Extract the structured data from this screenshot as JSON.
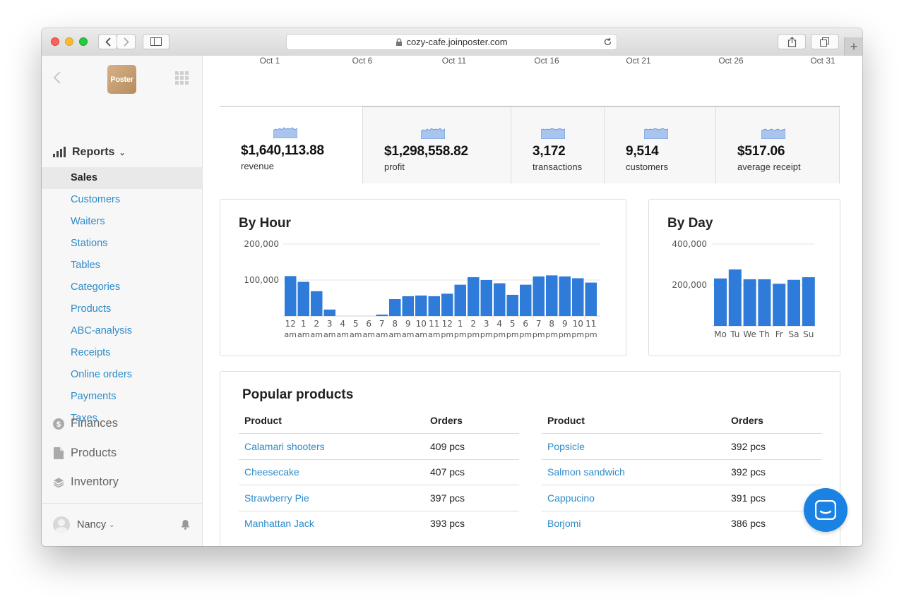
{
  "browser": {
    "url": "cozy-cafe.joinposter.com",
    "new_tab_icon": "plus-icon"
  },
  "sidebar": {
    "logo_text": "Poster",
    "reports_label": "Reports",
    "report_items": [
      {
        "label": "Sales",
        "active": true
      },
      {
        "label": "Customers"
      },
      {
        "label": "Waiters"
      },
      {
        "label": "Stations"
      },
      {
        "label": "Tables"
      },
      {
        "label": "Categories"
      },
      {
        "label": "Products"
      },
      {
        "label": "ABC-analysis"
      },
      {
        "label": "Receipts"
      },
      {
        "label": "Online orders"
      },
      {
        "label": "Payments"
      },
      {
        "label": "Taxes"
      }
    ],
    "main_items": [
      {
        "label": "Finances",
        "icon": "dollar-icon"
      },
      {
        "label": "Products",
        "icon": "document-icon"
      },
      {
        "label": "Inventory",
        "icon": "layers-icon"
      }
    ],
    "user_name": "Nancy"
  },
  "date_axis": [
    "Oct 1",
    "Oct 6",
    "Oct 11",
    "Oct 16",
    "Oct 21",
    "Oct 26",
    "Oct 31"
  ],
  "stats": [
    {
      "value": "$1,640,113.88",
      "label": "revenue"
    },
    {
      "value": "$1,298,558.82",
      "label": "profit"
    },
    {
      "value": "3,172",
      "label": "transactions"
    },
    {
      "value": "9,514",
      "label": "customers"
    },
    {
      "value": "$517.06",
      "label": "average receipt"
    }
  ],
  "colors": {
    "bar": "#2e7bd9",
    "link": "#2d8bc9",
    "accent": "#1a82e2"
  },
  "chart_data": [
    {
      "type": "bar",
      "title": "By Hour",
      "categories": [
        "12 am",
        "1 am",
        "2 am",
        "3 am",
        "4 am",
        "5 am",
        "6 am",
        "7 am",
        "8 am",
        "9 am",
        "10 am",
        "11 am",
        "12 pm",
        "1 pm",
        "2 pm",
        "3 pm",
        "4 pm",
        "5 pm",
        "6 pm",
        "7 pm",
        "8 pm",
        "9 pm",
        "10 pm",
        "11 pm"
      ],
      "tick_top": [
        "12",
        "1",
        "2",
        "3",
        "4",
        "5",
        "6",
        "7",
        "8",
        "9",
        "10",
        "11",
        "12",
        "1",
        "2",
        "3",
        "4",
        "5",
        "6",
        "7",
        "8",
        "9",
        "10",
        "11"
      ],
      "tick_bottom": [
        "am",
        "am",
        "am",
        "am",
        "am",
        "am",
        "am",
        "am",
        "am",
        "am",
        "am",
        "am",
        "pm",
        "pm",
        "pm",
        "pm",
        "pm",
        "pm",
        "pm",
        "pm",
        "pm",
        "pm",
        "pm",
        "pm"
      ],
      "values": [
        111000,
        95000,
        69000,
        18000,
        0,
        0,
        0,
        4000,
        47000,
        55000,
        57000,
        55000,
        62000,
        87000,
        108000,
        100000,
        91000,
        59000,
        87000,
        110000,
        113000,
        110000,
        105000,
        93000
      ],
      "ylim": [
        0,
        200000
      ],
      "yticks": [
        "200,000",
        "100,000"
      ],
      "grid": true
    },
    {
      "type": "bar",
      "title": "By Day",
      "categories": [
        "Mo",
        "Tu",
        "We",
        "Th",
        "Fr",
        "Sa",
        "Su"
      ],
      "values": [
        232000,
        276000,
        228000,
        228000,
        206000,
        225000,
        238000
      ],
      "ylim": [
        0,
        400000
      ],
      "yticks": [
        "400,000",
        "200,000"
      ],
      "grid": true
    }
  ],
  "popular": {
    "title": "Popular products",
    "col_product": "Product",
    "col_orders": "Orders",
    "left": [
      {
        "name": "Calamari shooters",
        "orders": "409 pcs"
      },
      {
        "name": "Cheesecake",
        "orders": "407 pcs"
      },
      {
        "name": "Strawberry Pie",
        "orders": "397 pcs"
      },
      {
        "name": "Manhattan Jack",
        "orders": "393 pcs"
      }
    ],
    "right": [
      {
        "name": "Popsicle",
        "orders": "392 pcs"
      },
      {
        "name": "Salmon sandwich",
        "orders": "392 pcs"
      },
      {
        "name": "Cappucino",
        "orders": "391 pcs"
      },
      {
        "name": "Borjomi",
        "orders": "386 pcs"
      }
    ]
  }
}
